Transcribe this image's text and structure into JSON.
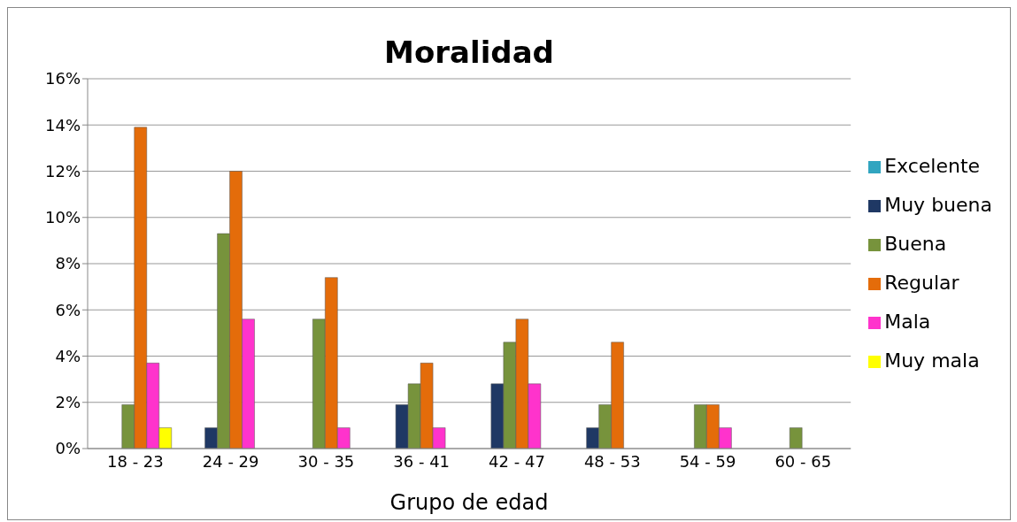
{
  "chart_data": {
    "type": "bar",
    "title": "Moralidad",
    "xlabel": "Grupo de edad",
    "categories": [
      "18 - 23",
      "24 - 29",
      "30 - 35",
      "36 - 41",
      "42 - 47",
      "48 - 53",
      "54 - 59",
      "60 - 65"
    ],
    "series": [
      {
        "name": "Excelente",
        "color": "#31a5c0",
        "values": [
          null,
          null,
          null,
          null,
          null,
          null,
          null,
          null
        ]
      },
      {
        "name": "Muy buena",
        "color": "#1f3864",
        "values": [
          null,
          0.9,
          null,
          1.9,
          2.8,
          0.9,
          null,
          null
        ]
      },
      {
        "name": "Buena",
        "color": "#77933c",
        "values": [
          1.9,
          9.3,
          5.6,
          2.8,
          4.6,
          1.9,
          1.9,
          0.9
        ]
      },
      {
        "name": "Regular",
        "color": "#e46c0a",
        "values": [
          13.9,
          12,
          7.4,
          3.7,
          5.6,
          4.6,
          1.9,
          null
        ]
      },
      {
        "name": "Mala",
        "color": "#ff33cc",
        "values": [
          3.7,
          5.6,
          0.9,
          0.9,
          2.8,
          null,
          0.9,
          null
        ]
      },
      {
        "name": "Muy mala",
        "color": "#ffff00",
        "values": [
          0.9,
          null,
          null,
          null,
          null,
          null,
          null,
          null
        ]
      }
    ],
    "ylim": [
      0,
      16
    ],
    "yticks": [
      {
        "value": 0,
        "label": "0%"
      },
      {
        "value": 2,
        "label": "2%"
      },
      {
        "value": 4,
        "label": "4%"
      },
      {
        "value": 6,
        "label": "6%"
      },
      {
        "value": 8,
        "label": "8%"
      },
      {
        "value": 10,
        "label": "10%"
      },
      {
        "value": 12,
        "label": "12%"
      },
      {
        "value": 14,
        "label": "14%"
      },
      {
        "value": 16,
        "label": "16%"
      }
    ],
    "grid": "y",
    "legend": "right"
  }
}
